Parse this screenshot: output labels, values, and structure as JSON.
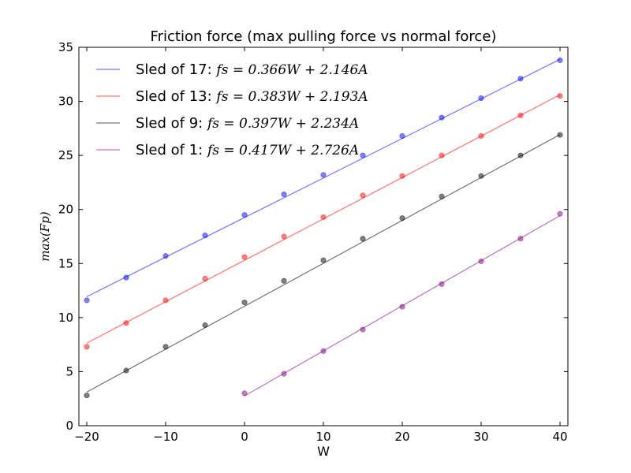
{
  "chart_data": {
    "type": "scatter",
    "title": "Friction force (max pulling force vs normal force)",
    "xlabel": "W",
    "ylabel": "max(Fp)",
    "xlim": [
      -21,
      41
    ],
    "ylim": [
      0,
      35
    ],
    "xticks": [
      -20,
      -10,
      0,
      10,
      20,
      30,
      40
    ],
    "yticks": [
      0,
      5,
      10,
      15,
      20,
      25,
      30,
      35
    ],
    "grid": false,
    "legend_position": "top-left",
    "series": [
      {
        "name": "Sled of 17",
        "equation": "fs = 0.366W + 2.146A",
        "color": "#0000ff",
        "x": [
          -20,
          -15,
          -10,
          -5,
          0,
          5,
          10,
          15,
          20,
          25,
          30,
          35,
          40
        ],
        "y": [
          11.6,
          13.7,
          15.7,
          17.6,
          19.5,
          21.4,
          23.2,
          25.0,
          26.8,
          28.5,
          30.3,
          32.1,
          33.8
        ],
        "fit_slope": 0.366,
        "fit_intercept": 19.25
      },
      {
        "name": "Sled of 13",
        "equation": "fs = 0.383W + 2.193A",
        "color": "#ff0000",
        "x": [
          -20,
          -15,
          -10,
          -5,
          0,
          5,
          10,
          15,
          20,
          25,
          30,
          35,
          40
        ],
        "y": [
          7.3,
          9.5,
          11.6,
          13.6,
          15.6,
          17.5,
          19.3,
          21.3,
          23.1,
          25.0,
          26.8,
          28.7,
          30.5
        ],
        "fit_slope": 0.383,
        "fit_intercept": 15.3
      },
      {
        "name": "Sled of 9",
        "equation": "fs = 0.397W + 2.234A",
        "color": "#000000",
        "x": [
          -20,
          -15,
          -10,
          -5,
          0,
          5,
          10,
          15,
          20,
          25,
          30,
          35,
          40
        ],
        "y": [
          2.8,
          5.1,
          7.3,
          9.3,
          11.4,
          13.4,
          15.3,
          17.3,
          19.2,
          21.2,
          23.1,
          25.0,
          26.9
        ],
        "fit_slope": 0.397,
        "fit_intercept": 11.05
      },
      {
        "name": "Sled of 1",
        "equation": "fs = 0.417W + 2.726A",
        "color": "#800080",
        "x": [
          0,
          5,
          10,
          15,
          20,
          25,
          30,
          35,
          40
        ],
        "y": [
          3.0,
          4.8,
          6.9,
          8.9,
          11.0,
          13.1,
          15.2,
          17.3,
          19.6
        ],
        "fit_slope": 0.417,
        "fit_intercept": 2.75
      }
    ]
  }
}
